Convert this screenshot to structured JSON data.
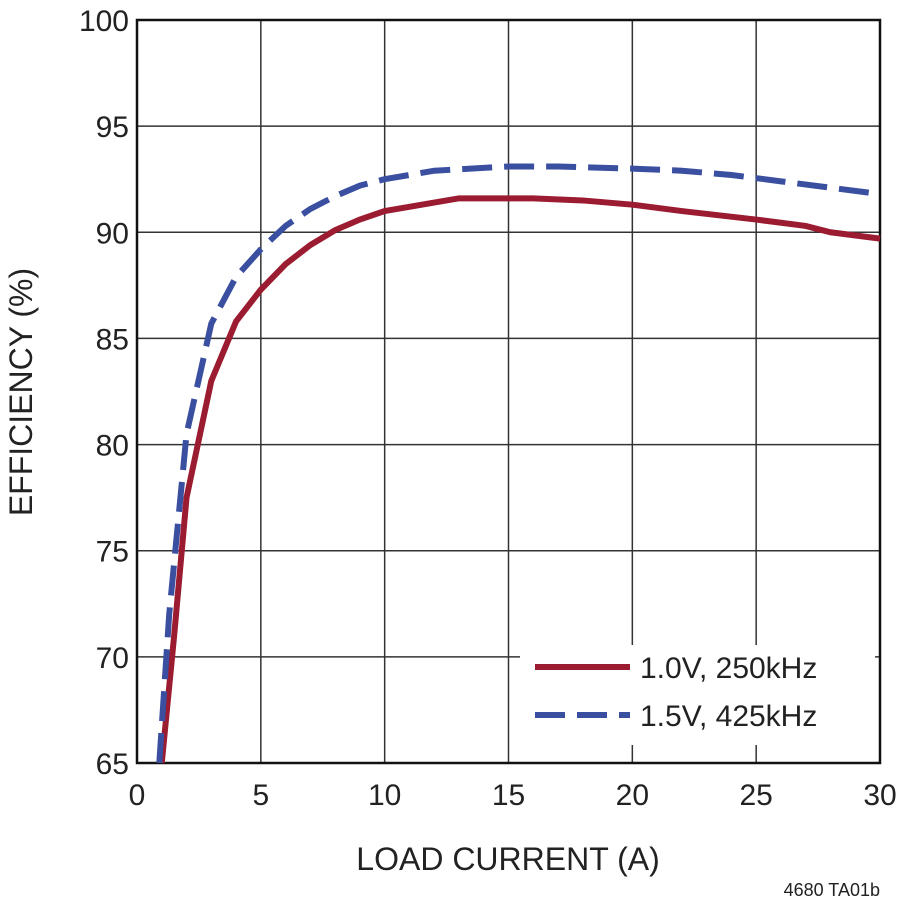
{
  "chart_data": {
    "type": "line",
    "x_label": "LOAD CURRENT (A)",
    "y_label": "EFFICIENCY (%)",
    "footnote": "4680 TA01b",
    "xlim": [
      0,
      30
    ],
    "xticks": [
      0,
      5,
      10,
      15,
      20,
      25,
      30
    ],
    "ylim": [
      65,
      100
    ],
    "yticks": [
      65,
      70,
      75,
      80,
      85,
      90,
      95,
      100
    ],
    "grid": true,
    "legend": "lower right",
    "series": [
      {
        "name": "1.0V, 250kHz",
        "color": "#9b1b30",
        "style": "solid",
        "x": [
          1,
          1.5,
          2,
          3,
          4,
          5,
          6,
          7,
          8,
          9,
          10,
          12,
          13,
          16,
          18,
          20,
          22,
          25,
          27,
          28,
          30
        ],
        "values": [
          65,
          71,
          77.5,
          83,
          85.8,
          87.3,
          88.5,
          89.4,
          90.1,
          90.6,
          91,
          91.4,
          91.6,
          91.6,
          91.5,
          91.3,
          91,
          90.6,
          90.3,
          90,
          89.7
        ]
      },
      {
        "name": "1.5V, 425kHz",
        "color": "#3a4fa0",
        "style": "dashed",
        "x": [
          0.9,
          1.3,
          2,
          3,
          4,
          5,
          6,
          7,
          8,
          9,
          10,
          12,
          15,
          17,
          20,
          22,
          24,
          26,
          28,
          30
        ],
        "values": [
          65,
          72,
          80.5,
          85.7,
          87.9,
          89.2,
          90.3,
          91.1,
          91.7,
          92.2,
          92.5,
          92.9,
          93.1,
          93.1,
          93,
          92.9,
          92.7,
          92.4,
          92.1,
          91.8
        ]
      }
    ]
  }
}
